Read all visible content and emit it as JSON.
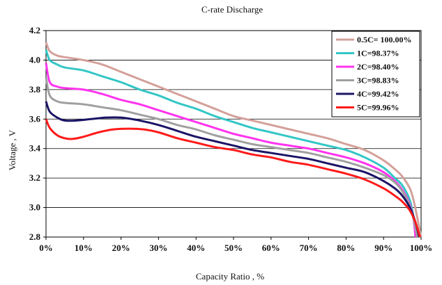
{
  "chart_data": {
    "type": "line",
    "title": "C-rate Discharge",
    "xlabel": "Capacity Ratio , %",
    "ylabel": "Voltage , V",
    "xlim": [
      0,
      100
    ],
    "ylim": [
      2.8,
      4.2
    ],
    "x_ticks": [
      0,
      10,
      20,
      30,
      40,
      50,
      60,
      70,
      80,
      90,
      100
    ],
    "x_tick_labels": [
      "0%",
      "10%",
      "20%",
      "30%",
      "40%",
      "50%",
      "60%",
      "70%",
      "80%",
      "90%",
      "100%"
    ],
    "y_ticks": [
      2.8,
      3.0,
      3.2,
      3.4,
      3.6,
      3.8,
      4.0,
      4.2
    ],
    "y_tick_labels": [
      "2.8",
      "3.0",
      "3.2",
      "3.4",
      "3.6",
      "3.8",
      "4.0",
      "4.2"
    ],
    "grid": "horizontal",
    "legend_position": "top-right",
    "series": [
      {
        "name": "0.5C= 100.00%",
        "color": "#d4a09a",
        "points": [
          [
            0,
            4.12
          ],
          [
            1,
            4.06
          ],
          [
            3,
            4.03
          ],
          [
            5,
            4.02
          ],
          [
            10,
            4.0
          ],
          [
            15,
            3.97
          ],
          [
            20,
            3.92
          ],
          [
            25,
            3.87
          ],
          [
            30,
            3.82
          ],
          [
            35,
            3.77
          ],
          [
            40,
            3.72
          ],
          [
            45,
            3.67
          ],
          [
            50,
            3.62
          ],
          [
            55,
            3.59
          ],
          [
            60,
            3.56
          ],
          [
            65,
            3.53
          ],
          [
            70,
            3.5
          ],
          [
            75,
            3.47
          ],
          [
            80,
            3.43
          ],
          [
            85,
            3.39
          ],
          [
            90,
            3.32
          ],
          [
            93,
            3.26
          ],
          [
            95,
            3.21
          ],
          [
            97,
            3.13
          ],
          [
            98,
            3.05
          ],
          [
            99,
            2.93
          ],
          [
            100,
            2.8
          ]
        ]
      },
      {
        "name": "1C=98.37%",
        "color": "#33c6c6",
        "points": [
          [
            0,
            4.07
          ],
          [
            1,
            4.0
          ],
          [
            3,
            3.97
          ],
          [
            5,
            3.95
          ],
          [
            10,
            3.93
          ],
          [
            15,
            3.89
          ],
          [
            20,
            3.85
          ],
          [
            25,
            3.8
          ],
          [
            30,
            3.76
          ],
          [
            35,
            3.71
          ],
          [
            40,
            3.67
          ],
          [
            45,
            3.62
          ],
          [
            50,
            3.58
          ],
          [
            55,
            3.54
          ],
          [
            60,
            3.51
          ],
          [
            65,
            3.48
          ],
          [
            70,
            3.45
          ],
          [
            75,
            3.42
          ],
          [
            80,
            3.39
          ],
          [
            85,
            3.34
          ],
          [
            90,
            3.27
          ],
          [
            93,
            3.2
          ],
          [
            95,
            3.15
          ],
          [
            97,
            3.05
          ],
          [
            98,
            2.93
          ],
          [
            98.5,
            2.8
          ]
        ]
      },
      {
        "name": "2C=98.40%",
        "color": "#ff33ee",
        "points": [
          [
            0,
            3.98
          ],
          [
            1,
            3.85
          ],
          [
            3,
            3.82
          ],
          [
            5,
            3.81
          ],
          [
            10,
            3.8
          ],
          [
            15,
            3.77
          ],
          [
            20,
            3.73
          ],
          [
            25,
            3.7
          ],
          [
            30,
            3.66
          ],
          [
            35,
            3.62
          ],
          [
            40,
            3.58
          ],
          [
            45,
            3.54
          ],
          [
            50,
            3.5
          ],
          [
            55,
            3.47
          ],
          [
            60,
            3.44
          ],
          [
            65,
            3.42
          ],
          [
            70,
            3.4
          ],
          [
            75,
            3.37
          ],
          [
            80,
            3.34
          ],
          [
            85,
            3.3
          ],
          [
            90,
            3.24
          ],
          [
            93,
            3.18
          ],
          [
            95,
            3.12
          ],
          [
            97,
            3.02
          ],
          [
            98,
            2.92
          ],
          [
            98.5,
            2.8
          ]
        ]
      },
      {
        "name": "3C=98.83%",
        "color": "#a0a0a0",
        "points": [
          [
            0,
            3.88
          ],
          [
            1,
            3.76
          ],
          [
            3,
            3.72
          ],
          [
            5,
            3.71
          ],
          [
            10,
            3.7
          ],
          [
            15,
            3.68
          ],
          [
            20,
            3.66
          ],
          [
            25,
            3.63
          ],
          [
            30,
            3.6
          ],
          [
            35,
            3.56
          ],
          [
            40,
            3.53
          ],
          [
            45,
            3.49
          ],
          [
            50,
            3.46
          ],
          [
            55,
            3.43
          ],
          [
            60,
            3.41
          ],
          [
            65,
            3.39
          ],
          [
            70,
            3.37
          ],
          [
            75,
            3.34
          ],
          [
            80,
            3.31
          ],
          [
            85,
            3.27
          ],
          [
            90,
            3.22
          ],
          [
            93,
            3.17
          ],
          [
            95,
            3.11
          ],
          [
            97,
            3.01
          ],
          [
            98,
            2.92
          ],
          [
            99,
            2.8
          ]
        ]
      },
      {
        "name": "4C=99.42%",
        "color": "#1a1466",
        "points": [
          [
            0,
            3.72
          ],
          [
            1,
            3.65
          ],
          [
            3,
            3.61
          ],
          [
            5,
            3.59
          ],
          [
            8,
            3.59
          ],
          [
            12,
            3.6
          ],
          [
            16,
            3.61
          ],
          [
            20,
            3.61
          ],
          [
            25,
            3.59
          ],
          [
            30,
            3.56
          ],
          [
            35,
            3.52
          ],
          [
            40,
            3.48
          ],
          [
            45,
            3.45
          ],
          [
            50,
            3.42
          ],
          [
            55,
            3.39
          ],
          [
            60,
            3.37
          ],
          [
            65,
            3.35
          ],
          [
            70,
            3.33
          ],
          [
            75,
            3.3
          ],
          [
            80,
            3.27
          ],
          [
            85,
            3.24
          ],
          [
            90,
            3.18
          ],
          [
            93,
            3.13
          ],
          [
            95,
            3.08
          ],
          [
            97,
            3.0
          ],
          [
            98.5,
            2.9
          ],
          [
            99.5,
            2.8
          ]
        ]
      },
      {
        "name": "5C=99.96%",
        "color": "#ff1a1a",
        "points": [
          [
            0,
            3.6
          ],
          [
            1,
            3.54
          ],
          [
            3,
            3.49
          ],
          [
            5,
            3.47
          ],
          [
            7,
            3.465
          ],
          [
            10,
            3.48
          ],
          [
            14,
            3.51
          ],
          [
            18,
            3.53
          ],
          [
            22,
            3.535
          ],
          [
            26,
            3.53
          ],
          [
            30,
            3.51
          ],
          [
            35,
            3.47
          ],
          [
            40,
            3.44
          ],
          [
            45,
            3.41
          ],
          [
            50,
            3.39
          ],
          [
            55,
            3.36
          ],
          [
            60,
            3.34
          ],
          [
            65,
            3.31
          ],
          [
            70,
            3.29
          ],
          [
            75,
            3.26
          ],
          [
            80,
            3.23
          ],
          [
            85,
            3.19
          ],
          [
            90,
            3.13
          ],
          [
            93,
            3.08
          ],
          [
            95,
            3.04
          ],
          [
            97,
            2.98
          ],
          [
            98.5,
            2.9
          ],
          [
            99.7,
            2.8
          ]
        ]
      }
    ]
  }
}
